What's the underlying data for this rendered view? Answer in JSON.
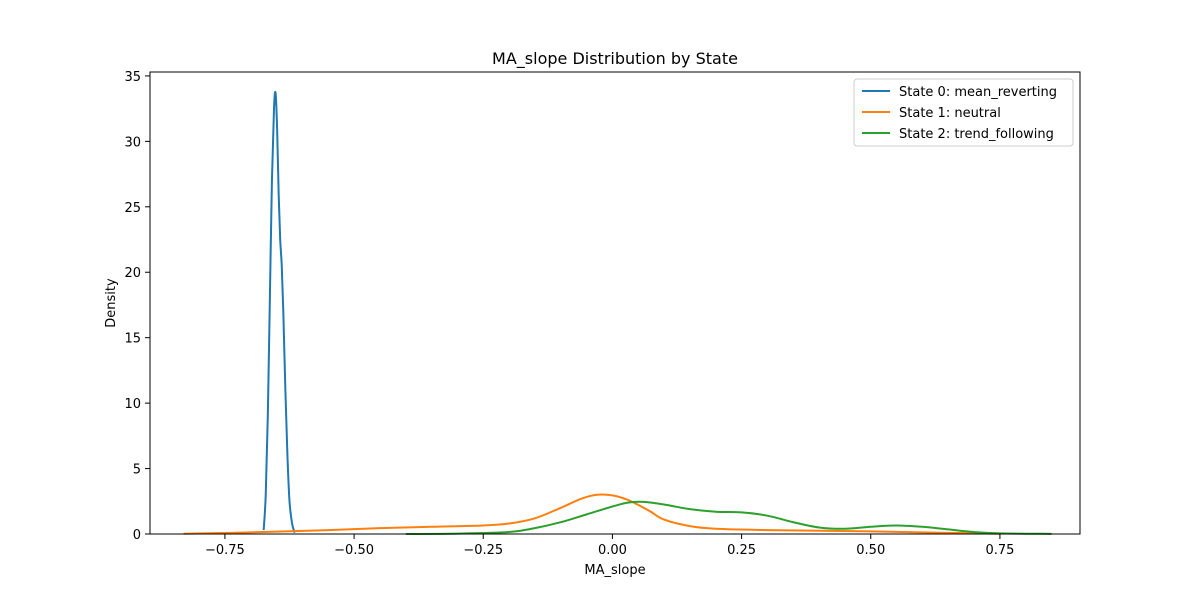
{
  "chart_data": {
    "type": "line",
    "title": "MA_slope Distribution by State",
    "xlabel": "MA_slope",
    "ylabel": "Density",
    "xlim": [
      -0.895,
      0.905
    ],
    "ylim": [
      0,
      35.3
    ],
    "xticks": [
      -0.75,
      -0.5,
      -0.25,
      0.0,
      0.25,
      0.5,
      0.75
    ],
    "xtick_labels": [
      "−0.75",
      "−0.50",
      "−0.25",
      "0.00",
      "0.25",
      "0.50",
      "0.75"
    ],
    "yticks": [
      0,
      5,
      10,
      15,
      20,
      25,
      30,
      35
    ],
    "ytick_labels": [
      "0",
      "5",
      "10",
      "15",
      "20",
      "25",
      "30",
      "35"
    ],
    "grid": false,
    "legend_position": "top-right",
    "series": [
      {
        "name": "State 0: mean_reverting",
        "color": "#1f77b4",
        "points": [
          [
            -0.675,
            0.3
          ],
          [
            -0.671,
            3
          ],
          [
            -0.667,
            9
          ],
          [
            -0.663,
            18
          ],
          [
            -0.659,
            27
          ],
          [
            -0.655,
            32.5
          ],
          [
            -0.652,
            33.7
          ],
          [
            -0.649,
            31
          ],
          [
            -0.646,
            26
          ],
          [
            -0.643,
            22.5
          ],
          [
            -0.64,
            20.5
          ],
          [
            -0.637,
            17
          ],
          [
            -0.633,
            11
          ],
          [
            -0.629,
            6
          ],
          [
            -0.625,
            2.5
          ],
          [
            -0.62,
            0.8
          ],
          [
            -0.615,
            0.1
          ]
        ]
      },
      {
        "name": "State 1: neutral",
        "color": "#ff7f0e",
        "points": [
          [
            -0.83,
            0.02
          ],
          [
            -0.75,
            0.08
          ],
          [
            -0.65,
            0.18
          ],
          [
            -0.55,
            0.3
          ],
          [
            -0.45,
            0.45
          ],
          [
            -0.35,
            0.55
          ],
          [
            -0.25,
            0.65
          ],
          [
            -0.2,
            0.8
          ],
          [
            -0.15,
            1.2
          ],
          [
            -0.1,
            2.0
          ],
          [
            -0.06,
            2.7
          ],
          [
            -0.03,
            3.0
          ],
          [
            0.0,
            2.95
          ],
          [
            0.03,
            2.6
          ],
          [
            0.07,
            1.8
          ],
          [
            0.1,
            1.1
          ],
          [
            0.15,
            0.6
          ],
          [
            0.2,
            0.4
          ],
          [
            0.3,
            0.3
          ],
          [
            0.4,
            0.25
          ],
          [
            0.5,
            0.2
          ],
          [
            0.6,
            0.12
          ],
          [
            0.7,
            0.06
          ],
          [
            0.75,
            0.02
          ]
        ]
      },
      {
        "name": "State 2: trend_following",
        "color": "#2ca02c",
        "points": [
          [
            -0.4,
            0.0
          ],
          [
            -0.3,
            0.03
          ],
          [
            -0.2,
            0.15
          ],
          [
            -0.15,
            0.45
          ],
          [
            -0.1,
            0.9
          ],
          [
            -0.05,
            1.5
          ],
          [
            0.0,
            2.1
          ],
          [
            0.03,
            2.4
          ],
          [
            0.06,
            2.45
          ],
          [
            0.1,
            2.25
          ],
          [
            0.15,
            1.9
          ],
          [
            0.2,
            1.7
          ],
          [
            0.25,
            1.65
          ],
          [
            0.3,
            1.4
          ],
          [
            0.35,
            0.9
          ],
          [
            0.4,
            0.5
          ],
          [
            0.45,
            0.4
          ],
          [
            0.5,
            0.55
          ],
          [
            0.55,
            0.65
          ],
          [
            0.6,
            0.55
          ],
          [
            0.65,
            0.35
          ],
          [
            0.7,
            0.15
          ],
          [
            0.75,
            0.05
          ],
          [
            0.85,
            0.01
          ]
        ]
      }
    ]
  }
}
